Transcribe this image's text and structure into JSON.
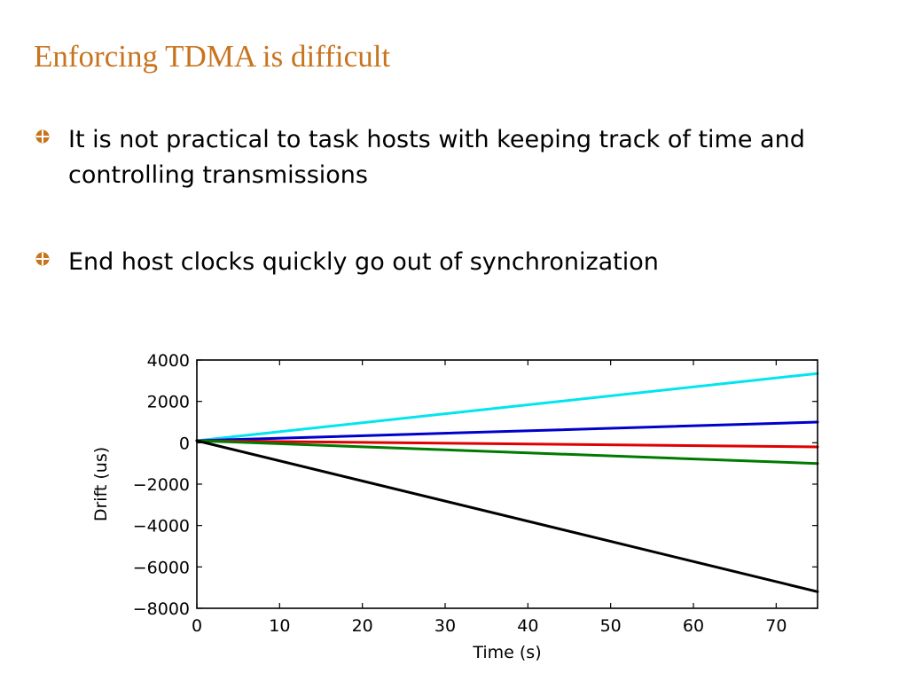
{
  "slide": {
    "title": "Enforcing TDMA is difficult",
    "bullets": [
      "It is not practical to task hosts with keeping track of time and controlling transmissions",
      "End host clocks quickly go out of synchronization"
    ],
    "bullet_icon": "circle-bullet-icon",
    "accent_color": "#c8741e"
  },
  "chart_data": {
    "type": "line",
    "title": "",
    "xlabel": "Time (s)",
    "ylabel": "Drift (us)",
    "xlim": [
      0,
      75
    ],
    "ylim": [
      -8000,
      4000
    ],
    "xticks": [
      "0",
      "10",
      "20",
      "30",
      "40",
      "50",
      "60",
      "70"
    ],
    "yticks": [
      "4000",
      "2000",
      "0",
      "−2000",
      "−4000",
      "−6000",
      "−8000"
    ],
    "grid": false,
    "series": [
      {
        "color": "#00e5ee",
        "x": [
          0,
          75
        ],
        "y": [
          100,
          3350
        ]
      },
      {
        "color": "#0000cc",
        "x": [
          0,
          75
        ],
        "y": [
          100,
          1000
        ]
      },
      {
        "color": "#e00000",
        "x": [
          0,
          75
        ],
        "y": [
          100,
          -200
        ]
      },
      {
        "color": "#007a00",
        "x": [
          0,
          75
        ],
        "y": [
          100,
          -1000
        ]
      },
      {
        "color": "#000000",
        "x": [
          0,
          75
        ],
        "y": [
          100,
          -7200
        ]
      }
    ]
  }
}
